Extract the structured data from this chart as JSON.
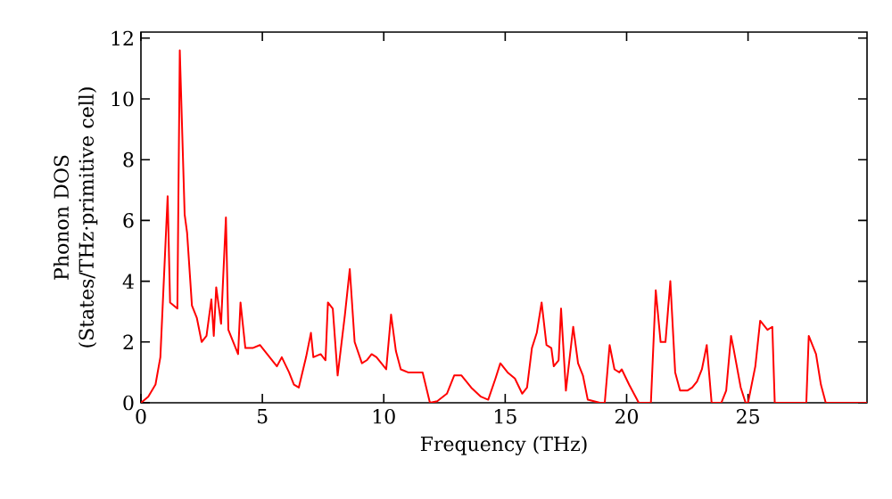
{
  "chart_data": {
    "type": "line",
    "xlabel": "Frequency (THz)",
    "ylabel": "Phonon DOS\n(States/THz·primitive cell)",
    "xlim": [
      0,
      29.9
    ],
    "ylim": [
      0,
      12.2
    ],
    "xticks": [
      0,
      5,
      10,
      15,
      20,
      25
    ],
    "yticks": [
      0,
      2,
      4,
      6,
      8,
      10,
      12
    ],
    "marker": "none",
    "line_style": "solid",
    "series": [
      {
        "color": "#ff0000",
        "x": [
          0,
          0.3,
          0.6,
          0.8,
          1.1,
          1.2,
          1.5,
          1.6,
          1.8,
          1.9,
          2.1,
          2.3,
          2.5,
          2.7,
          2.9,
          3.0,
          3.1,
          3.3,
          3.5,
          3.6,
          4.0,
          4.1,
          4.3,
          4.6,
          4.9,
          5.3,
          5.6,
          5.8,
          6.1,
          6.3,
          6.5,
          6.8,
          7.0,
          7.1,
          7.4,
          7.6,
          7.7,
          7.9,
          8.1,
          8.4,
          8.6,
          8.8,
          9.1,
          9.3,
          9.5,
          9.7,
          10.1,
          10.3,
          10.5,
          10.7,
          11.0,
          11.3,
          11.6,
          11.9,
          12.2,
          12.6,
          12.9,
          13.2,
          13.6,
          14.0,
          14.3,
          14.6,
          14.8,
          15.1,
          15.4,
          15.7,
          15.9,
          16.1,
          16.3,
          16.5,
          16.7,
          16.9,
          17.0,
          17.2,
          17.3,
          17.5,
          17.8,
          18.0,
          18.2,
          18.4,
          18.9,
          19.1,
          19.3,
          19.5,
          19.7,
          19.8,
          20.1,
          20.3,
          20.5,
          21.0,
          21.2,
          21.4,
          21.6,
          21.8,
          22.0,
          22.2,
          22.5,
          22.7,
          22.9,
          23.1,
          23.3,
          23.5,
          23.9,
          24.1,
          24.3,
          24.4,
          24.7,
          24.9,
          25.0,
          25.3,
          25.5,
          25.8,
          26.0,
          26.1,
          27.4,
          27.5,
          27.8,
          28.0,
          28.2,
          29.9
        ],
        "values": [
          0,
          0.2,
          0.6,
          1.5,
          6.8,
          3.3,
          3.1,
          11.6,
          6.2,
          5.6,
          3.2,
          2.8,
          2.0,
          2.2,
          3.4,
          2.2,
          3.8,
          2.6,
          6.1,
          2.4,
          1.6,
          3.3,
          1.8,
          1.8,
          1.9,
          1.5,
          1.2,
          1.5,
          1.0,
          0.6,
          0.5,
          1.5,
          2.3,
          1.5,
          1.6,
          1.4,
          3.3,
          3.1,
          0.9,
          2.9,
          4.4,
          2.0,
          1.3,
          1.4,
          1.6,
          1.5,
          1.1,
          2.9,
          1.7,
          1.1,
          1.0,
          1.0,
          1.0,
          0,
          0.05,
          0.3,
          0.9,
          0.9,
          0.5,
          0.2,
          0.1,
          0.8,
          1.3,
          1.0,
          0.8,
          0.3,
          0.5,
          1.8,
          2.3,
          3.3,
          1.9,
          1.8,
          1.2,
          1.4,
          3.1,
          0.4,
          2.5,
          1.3,
          0.9,
          0.1,
          0,
          0,
          1.9,
          1.1,
          1.0,
          1.1,
          0.6,
          0.3,
          0,
          0,
          3.7,
          2.0,
          2.0,
          4.0,
          1.0,
          0.4,
          0.4,
          0.5,
          0.7,
          1.1,
          1.9,
          0,
          0,
          0.4,
          2.2,
          1.8,
          0.5,
          0,
          0,
          1.2,
          2.7,
          2.4,
          2.5,
          0,
          0,
          2.2,
          1.6,
          0.6,
          0,
          0
        ]
      }
    ]
  }
}
